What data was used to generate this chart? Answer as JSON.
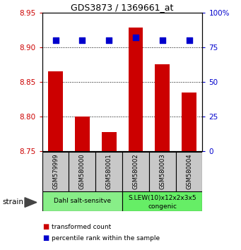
{
  "title": "GDS3873 / 1369661_at",
  "samples": [
    "GSM579999",
    "GSM580000",
    "GSM580001",
    "GSM580002",
    "GSM580003",
    "GSM580004"
  ],
  "bar_values": [
    8.865,
    8.8,
    8.778,
    8.928,
    8.875,
    8.835
  ],
  "percentile_values": [
    80,
    80,
    80,
    82,
    80,
    80
  ],
  "bar_bottom": 8.75,
  "bar_color": "#cc0000",
  "dot_color": "#0000cc",
  "ylim_left": [
    8.75,
    8.95
  ],
  "ylim_right": [
    0,
    100
  ],
  "yticks_left": [
    8.75,
    8.8,
    8.85,
    8.9,
    8.95
  ],
  "yticks_right": [
    0,
    25,
    50,
    75,
    100
  ],
  "groups": [
    {
      "label": "Dahl salt-sensitve",
      "indices": [
        0,
        1,
        2
      ],
      "color": "#88ee88"
    },
    {
      "label": "S.LEW(10)x12x2x3x5\ncongenic",
      "indices": [
        3,
        4,
        5
      ],
      "color": "#66ee66"
    }
  ],
  "strain_label": "strain",
  "legend_items": [
    {
      "color": "#cc0000",
      "label": "transformed count"
    },
    {
      "color": "#0000cc",
      "label": "percentile rank within the sample"
    }
  ],
  "tick_color_left": "#cc0000",
  "tick_color_right": "#0000cc",
  "bar_width": 0.55,
  "dot_size": 30,
  "sample_box_color": "#c8c8c8",
  "bg_color": "#ffffff"
}
